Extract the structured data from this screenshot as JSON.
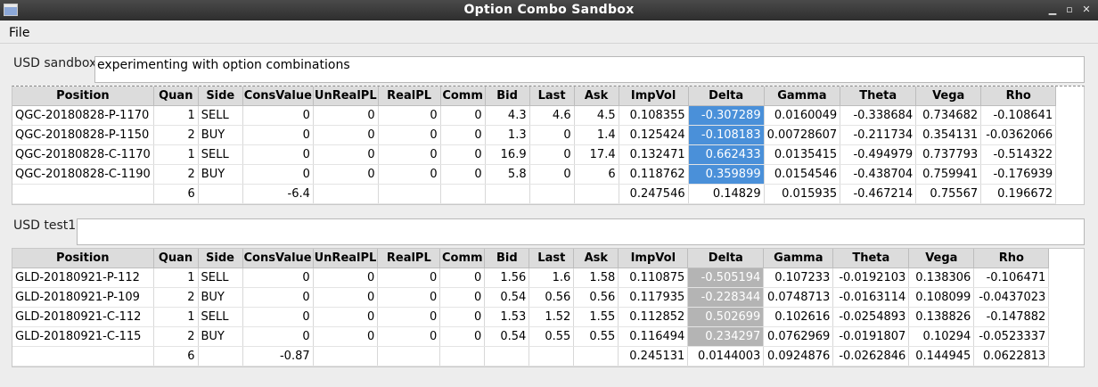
{
  "window": {
    "title": "Option Combo Sandbox"
  },
  "menu": {
    "file": "File"
  },
  "columns": [
    "Position",
    "Quan",
    "Side",
    "ConsValue",
    "UnRealPL",
    "RealPL",
    "Comm",
    "Bid",
    "Last",
    "Ask",
    "ImpVol",
    "Delta",
    "Gamma",
    "Theta",
    "Vega",
    "Rho"
  ],
  "sandbox1": {
    "label": "USD sandbox",
    "description": "experimenting with option combinations",
    "rows": [
      [
        "QGC-20180828-P-1170",
        "1",
        "SELL",
        "0",
        "0",
        "0",
        "0",
        "4.3",
        "4.6",
        "4.5",
        "0.108355",
        "-0.307289",
        "0.0160049",
        "-0.338684",
        "0.734682",
        "-0.108641"
      ],
      [
        "QGC-20180828-P-1150",
        "2",
        "BUY",
        "0",
        "0",
        "0",
        "0",
        "1.3",
        "0",
        "1.4",
        "0.125424",
        "-0.108183",
        "0.00728607",
        "-0.211734",
        "0.354131",
        "-0.0362066"
      ],
      [
        "QGC-20180828-C-1170",
        "1",
        "SELL",
        "0",
        "0",
        "0",
        "0",
        "16.9",
        "0",
        "17.4",
        "0.132471",
        "0.662433",
        "0.0135415",
        "-0.494979",
        "0.737793",
        "-0.514322"
      ],
      [
        "QGC-20180828-C-1190",
        "2",
        "BUY",
        "0",
        "0",
        "0",
        "0",
        "5.8",
        "0",
        "6",
        "0.118762",
        "0.359899",
        "0.0154546",
        "-0.438704",
        "0.759941",
        "-0.176939"
      ]
    ],
    "total": [
      "",
      "6",
      "",
      "-6.4",
      "",
      "",
      "",
      "",
      "",
      "",
      "0.247546",
      "0.14829",
      "0.015935",
      "-0.467214",
      "0.75567",
      "0.196672"
    ]
  },
  "sandbox2": {
    "label": "USD test1",
    "description": "",
    "rows": [
      [
        "GLD-20180921-P-112",
        "1",
        "SELL",
        "0",
        "0",
        "0",
        "0",
        "1.56",
        "1.6",
        "1.58",
        "0.110875",
        "-0.505194",
        "0.107233",
        "-0.0192103",
        "0.138306",
        "-0.106471"
      ],
      [
        "GLD-20180921-P-109",
        "2",
        "BUY",
        "0",
        "0",
        "0",
        "0",
        "0.54",
        "0.56",
        "0.56",
        "0.117935",
        "-0.228344",
        "0.0748713",
        "-0.0163114",
        "0.108099",
        "-0.0437023"
      ],
      [
        "GLD-20180921-C-112",
        "1",
        "SELL",
        "0",
        "0",
        "0",
        "0",
        "1.53",
        "1.52",
        "1.55",
        "0.112852",
        "0.502699",
        "0.102616",
        "-0.0254893",
        "0.138826",
        "-0.147882"
      ],
      [
        "GLD-20180921-C-115",
        "2",
        "BUY",
        "0",
        "0",
        "0",
        "0",
        "0.54",
        "0.55",
        "0.55",
        "0.116494",
        "0.234297",
        "0.0762969",
        "-0.0191807",
        "0.10294",
        "-0.0523337"
      ]
    ],
    "total": [
      "",
      "6",
      "",
      "-0.87",
      "",
      "",
      "",
      "",
      "",
      "",
      "0.245131",
      "0.0144003",
      "0.0924876",
      "-0.0262846",
      "0.144945",
      "0.0622813"
    ]
  },
  "colors": {
    "selection_active": "#4a90d9",
    "selection_inactive": "#b4b4b4",
    "titlebar": "#3a3a3a"
  }
}
